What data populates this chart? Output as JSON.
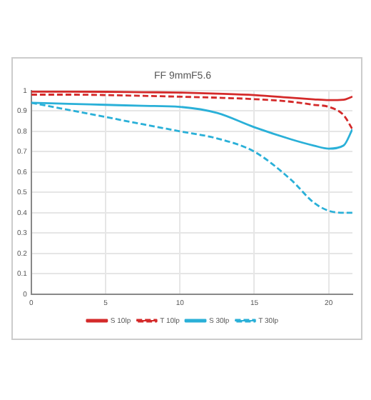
{
  "chart_data": {
    "type": "line",
    "title": "FF 9mmF5.6",
    "x": [
      0,
      2.5,
      5,
      7.5,
      10,
      12.5,
      15,
      17.5,
      19,
      20,
      21,
      21.6
    ],
    "series": [
      {
        "name": "S 10lp",
        "color": "#d42a2a",
        "line_style": "solid",
        "values": [
          0.995,
          0.995,
          0.994,
          0.992,
          0.99,
          0.985,
          0.978,
          0.965,
          0.957,
          0.953,
          0.955,
          0.97
        ]
      },
      {
        "name": "T 10lp",
        "color": "#d42a2a",
        "line_style": "dashed",
        "values": [
          0.98,
          0.98,
          0.978,
          0.974,
          0.97,
          0.965,
          0.958,
          0.945,
          0.93,
          0.92,
          0.88,
          0.81
        ]
      },
      {
        "name": "S 30lp",
        "color": "#2ab0d8",
        "line_style": "solid",
        "values": [
          0.94,
          0.935,
          0.93,
          0.925,
          0.92,
          0.89,
          0.82,
          0.76,
          0.73,
          0.715,
          0.73,
          0.81
        ]
      },
      {
        "name": "T 30lp",
        "color": "#2ab0d8",
        "line_style": "dashed",
        "values": [
          0.94,
          0.905,
          0.87,
          0.835,
          0.8,
          0.765,
          0.7,
          0.56,
          0.45,
          0.41,
          0.4,
          0.4
        ]
      }
    ],
    "xlim": [
      0,
      21.6
    ],
    "xticks": [
      0,
      5,
      10,
      15,
      20
    ],
    "ylim": [
      0,
      1
    ],
    "yticks": [
      0,
      0.1,
      0.2,
      0.3,
      0.4,
      0.5,
      0.6,
      0.7,
      0.8,
      0.9,
      1
    ],
    "grid": true,
    "legend": "bottom",
    "marker": "none"
  }
}
